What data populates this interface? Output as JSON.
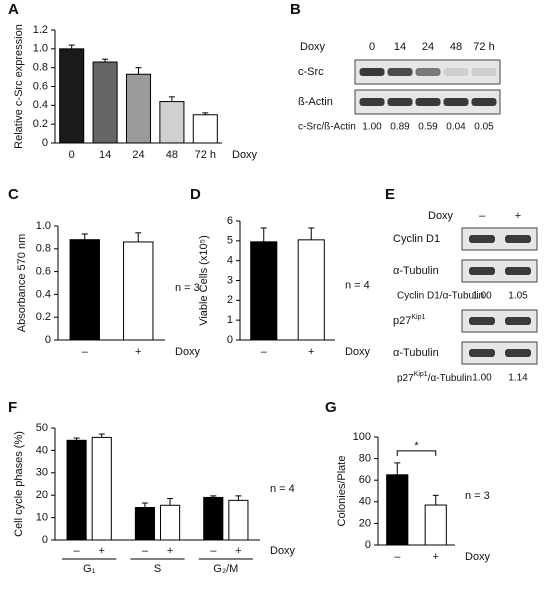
{
  "chart_data": [
    {
      "panel": "A",
      "type": "bar",
      "y_label": "Relative c-Src expression",
      "x_label": "Doxy",
      "categories": [
        "0",
        "14",
        "24",
        "48",
        "72 h"
      ],
      "values": [
        1.0,
        0.86,
        0.73,
        0.44,
        0.3
      ],
      "errors": [
        0.04,
        0.03,
        0.07,
        0.05,
        0.02
      ],
      "colors": [
        "#1a1a1a",
        "#666666",
        "#9a9a9a",
        "#d0d0d0",
        "#ffffff"
      ],
      "ylim": [
        0,
        1.2
      ],
      "yticks": [
        0,
        0.2,
        0.4,
        0.6,
        0.8,
        {
          "value": 1,
          "label": "1.0"
        },
        1.2
      ]
    },
    {
      "panel": "C",
      "type": "bar",
      "y_label": "Absorbance 570 nm",
      "x_label": "Doxy",
      "annotation": "n = 3",
      "categories": [
        "–",
        "+"
      ],
      "values": [
        0.88,
        0.86
      ],
      "errors": [
        0.05,
        0.08
      ],
      "colors": [
        "#000000",
        "#ffffff"
      ],
      "ylim": [
        0,
        1
      ],
      "yticks": [
        0,
        0.2,
        0.4,
        0.6,
        0.8,
        {
          "value": 1,
          "label": "1.0"
        }
      ]
    },
    {
      "panel": "D",
      "type": "bar",
      "y_label": "Viable Cells (x10⁵)",
      "x_label": "Doxy",
      "annotation": "n = 4",
      "categories": [
        "–",
        "+"
      ],
      "values": [
        4.95,
        5.05
      ],
      "errors": [
        0.7,
        0.6
      ],
      "colors": [
        "#000000",
        "#ffffff"
      ],
      "ylim": [
        0,
        6
      ],
      "yticks": [
        0,
        1,
        2,
        3,
        4,
        5,
        6
      ]
    },
    {
      "panel": "F",
      "type": "bar",
      "y_label": "Cell cycle phases (%)",
      "x_label": "Doxy",
      "annotation": "n = 4",
      "categories": [
        "G₁",
        "S",
        "G₂/M"
      ],
      "series": [
        {
          "name": "–",
          "color": "#000000",
          "values": [
            44.5,
            14.5,
            19
          ],
          "errors": [
            1,
            2,
            0.7
          ]
        },
        {
          "name": "+",
          "color": "#ffffff",
          "values": [
            45.8,
            15.5,
            17.7
          ],
          "errors": [
            1.5,
            3,
            2
          ]
        }
      ],
      "ylim": [
        0,
        50
      ],
      "yticks": [
        0,
        10,
        20,
        30,
        40,
        50
      ]
    },
    {
      "panel": "G",
      "type": "bar",
      "y_label": "Colonies/Plate",
      "x_label": "Doxy",
      "annotation": "n = 3",
      "significance": "*",
      "categories": [
        "–",
        "+"
      ],
      "values": [
        65,
        37
      ],
      "errors": [
        11,
        9
      ],
      "colors": [
        "#000000",
        "#ffffff"
      ],
      "ylim": [
        0,
        100
      ],
      "yticks": [
        0,
        20,
        40,
        60,
        80,
        100
      ]
    }
  ],
  "blots": [
    {
      "panel": "B",
      "header": "Doxy",
      "lanes": [
        "0",
        "14",
        "24",
        "48",
        "72 h"
      ],
      "blocks": [
        {
          "rows": [
            "c-Src",
            "ß-Actin"
          ],
          "ratio_label": "c-Src/ß-Actin",
          "ratios": [
            "1.00",
            "0.89",
            "0.59",
            "0.04",
            "0.05"
          ]
        }
      ]
    },
    {
      "panel": "E",
      "header": "Doxy",
      "lanes": [
        "–",
        "+"
      ],
      "blocks": [
        {
          "rows": [
            "Cyclin D1",
            "α-Tubulin"
          ],
          "ratio_label": "Cyclin D1/α-Tubulin",
          "ratios": [
            "1.00",
            "1.05"
          ]
        },
        {
          "rows": [
            [
              "p27",
              "Kip1"
            ],
            "α-Tubulin"
          ],
          "ratio_label": [
            "p27",
            "Kip1",
            "/α-Tubulin"
          ],
          "ratios": [
            "1.00",
            "1.14"
          ]
        }
      ]
    }
  ]
}
